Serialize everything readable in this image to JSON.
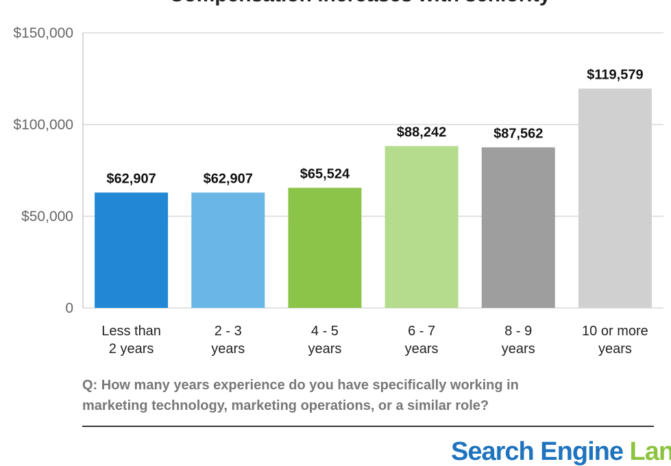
{
  "chart_data": {
    "type": "bar",
    "title": "Compensation increases with seniority",
    "categories": [
      [
        "Less than",
        "2 years"
      ],
      [
        "2 - 3",
        "years"
      ],
      [
        "4 - 5",
        "years"
      ],
      [
        "6 - 7",
        "years"
      ],
      [
        "8 - 9",
        "years"
      ],
      [
        "10 or more",
        "years"
      ]
    ],
    "values": [
      62907,
      62907,
      65524,
      88242,
      87562,
      119579
    ],
    "value_labels": [
      "$62,907",
      "$62,907",
      "$65,524",
      "$88,242",
      "$87,562",
      "$119,579"
    ],
    "colors": [
      "#2288d6",
      "#6ab6e6",
      "#8cc44a",
      "#b5db8c",
      "#9e9e9e",
      "#d0d0d0"
    ],
    "ylim": [
      0,
      150000
    ],
    "yticks": [
      0,
      50000,
      100000,
      150000
    ],
    "ytick_labels": [
      "0",
      "$50,000",
      "$100,000",
      "$150,000"
    ],
    "grid": true,
    "legend": "none",
    "xlabel": "",
    "ylabel": ""
  },
  "question": {
    "line1": "Q: How many years experience do you have specifically working in",
    "line2": "marketing technology, marketing operations, or a similar role?"
  },
  "logo": {
    "part1": "Search Engine",
    "part2": "Land"
  }
}
